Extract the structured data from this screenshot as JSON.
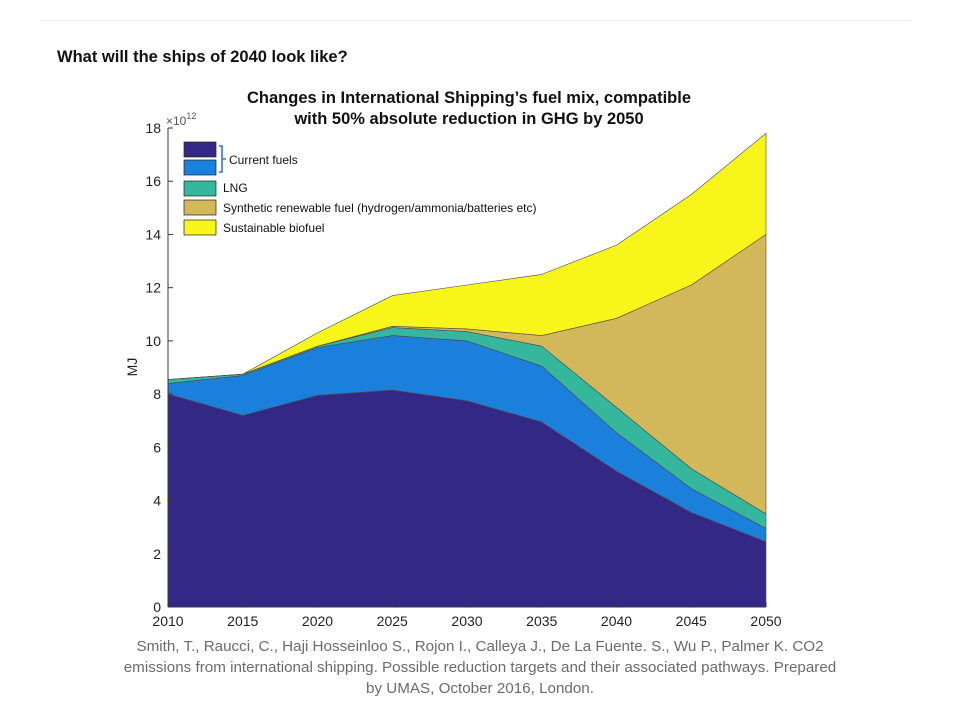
{
  "page": {
    "heading": "What will the ships of 2040 look like?",
    "citation_lines": [
      "Smith, T., Raucci, C., Haji Hosseinloo S., Rojon I., Calleya J., De La Fuente. S., Wu P., Palmer K. CO2",
      "emissions from international shipping. Possible reduction targets and their associated pathways. Prepared",
      "by UMAS, October 2016, London."
    ]
  },
  "chart_data": {
    "type": "area",
    "stacked": true,
    "title_lines": [
      "Changes in International Shipping’s fuel mix, compatible",
      "with 50% absolute reduction in GHG by 2050"
    ],
    "ylabel": "MJ",
    "xlabel": "",
    "y_multiplier": "×10",
    "y_multiplier_exponent": "12",
    "x": [
      2010,
      2015,
      2020,
      2025,
      2030,
      2035,
      2040,
      2045,
      2050
    ],
    "x_ticks": [
      "2010",
      "2015",
      "2020",
      "2025",
      "2030",
      "2035",
      "2040",
      "2045",
      "2050"
    ],
    "y_ticks": [
      "0",
      "2",
      "4",
      "6",
      "8",
      "10",
      "12",
      "14",
      "16",
      "18"
    ],
    "xlim": [
      2010,
      2050
    ],
    "ylim": [
      0,
      18
    ],
    "grid": false,
    "legend_position": "top-left",
    "legend_bracket_label": "Current fuels",
    "series": [
      {
        "name": "",
        "color": "#332885",
        "values": [
          8.0,
          7.2,
          7.95,
          8.15,
          7.75,
          6.95,
          5.1,
          3.55,
          2.45
        ]
      },
      {
        "name": "",
        "color": "#1a80db",
        "values": [
          0.4,
          1.5,
          1.8,
          2.05,
          2.25,
          2.1,
          1.45,
          0.9,
          0.5
        ]
      },
      {
        "name": "LNG",
        "color": "#35b79e",
        "values": [
          0.15,
          0.05,
          0.05,
          0.3,
          0.35,
          0.75,
          0.95,
          0.75,
          0.55
        ]
      },
      {
        "name": "Synthetic renewable fuel (hydrogen/ammonia/batteries etc)",
        "color": "#d3b75b",
        "values": [
          0,
          0,
          0,
          0.05,
          0.1,
          0.4,
          3.35,
          6.9,
          10.5
        ]
      },
      {
        "name": "Sustainable biofuel",
        "color": "#f8f51a",
        "values": [
          0,
          0,
          0.5,
          1.15,
          1.65,
          2.3,
          2.75,
          3.4,
          3.8
        ]
      }
    ]
  }
}
